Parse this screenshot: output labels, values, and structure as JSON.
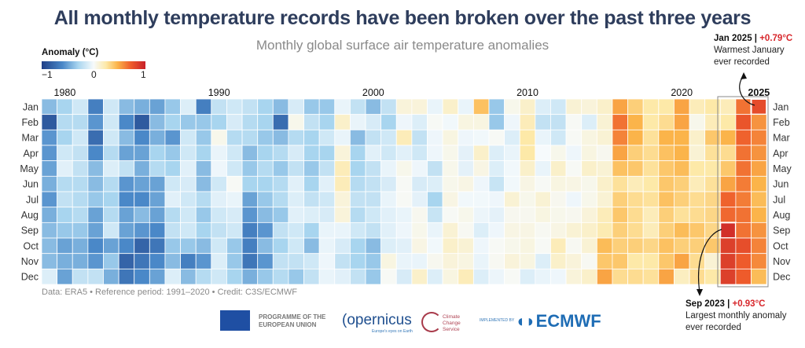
{
  "header": {
    "title": "All monthly temperature records have been broken over the past three years",
    "subtitle": "Monthly global surface air temperature anomalies"
  },
  "legend": {
    "title": "Anomaly (°C)",
    "ticks": [
      "−1",
      "0",
      "1"
    ],
    "colors": [
      "#1f3f87",
      "#4a88c8",
      "#a8d5ef",
      "#f6fafc",
      "#fde9a8",
      "#fbb44a",
      "#ee5b2b",
      "#c8202a"
    ]
  },
  "annotations": {
    "jan2025": {
      "label": "Jan 2025",
      "sep": " | ",
      "value": "+0.79°C",
      "line1": "Warmest January",
      "line2": "ever recorded"
    },
    "sep2023": {
      "label": "Sep 2023",
      "sep": " | ",
      "value": "+0.93°C",
      "line1": "Largest monthly anomaly",
      "line2": "ever recorded"
    }
  },
  "footer": {
    "note": "Data: ERA5 • Reference period: 1991–2020 • Credit: C3S/ECMWF",
    "logos": {
      "eu": "PROGRAMME OF THE EUROPEAN UNION",
      "copernicus": "opernicus",
      "copernicus_sub": "Europe's eyes on Earth",
      "c3s": "Climate Change Service",
      "implemented": "IMPLEMENTED BY",
      "ecmwf": "ECMWF"
    }
  },
  "chart_data": {
    "type": "heatmap",
    "title": "All monthly temperature records have been broken over the past three years",
    "subtitle": "Monthly global surface air temperature anomalies",
    "colorbar_label": "Anomaly (°C)",
    "color_range": [
      -1,
      1
    ],
    "year_start": 1979,
    "year_end": 2025,
    "x_tick_labels": [
      "1980",
      "1990",
      "2000",
      "2010",
      "2020",
      "2025"
    ],
    "months": [
      "Jan",
      "Feb",
      "Mar",
      "Apr",
      "May",
      "Jun",
      "Jul",
      "Aug",
      "Sep",
      "Oct",
      "Nov",
      "Dec"
    ],
    "highlighted": [
      {
        "year": 2025,
        "month": "Jan",
        "value": 0.79
      },
      {
        "year": 2023,
        "month": "Sep",
        "value": 0.93
      }
    ],
    "highlight_box_years": [
      2023,
      2025
    ],
    "values_by_month": {
      "Jan": [
        -0.4,
        -0.3,
        -0.15,
        -0.65,
        -0.15,
        -0.4,
        -0.45,
        -0.5,
        -0.35,
        -0.1,
        -0.65,
        -0.2,
        -0.15,
        -0.2,
        -0.3,
        -0.4,
        -0.12,
        -0.35,
        -0.35,
        -0.05,
        -0.2,
        -0.4,
        -0.2,
        0.1,
        0.1,
        -0.05,
        0.15,
        -0.05,
        0.4,
        -0.35,
        0.05,
        0.15,
        -0.1,
        -0.15,
        0.12,
        0.1,
        0.15,
        0.5,
        0.35,
        0.25,
        0.25,
        0.5,
        0.2,
        0.25,
        0.2,
        0.65,
        0.79
      ],
      "Feb": [
        -0.85,
        -0.25,
        -0.25,
        -0.55,
        -0.15,
        -0.6,
        -0.85,
        -0.4,
        -0.3,
        -0.35,
        -0.35,
        -0.3,
        -0.12,
        -0.25,
        -0.3,
        -0.75,
        0.05,
        -0.2,
        -0.3,
        0.15,
        -0.05,
        -0.12,
        -0.3,
        -0.03,
        -0.1,
        0.02,
        -0.02,
        0.08,
        0.08,
        -0.35,
        -0.03,
        0.2,
        -0.2,
        -0.2,
        0.02,
        -0.1,
        0.12,
        0.65,
        0.45,
        0.25,
        0.3,
        0.5,
        0.05,
        0.2,
        0.25,
        0.75,
        0.55
      ],
      "Mar": [
        -0.55,
        -0.3,
        -0.15,
        -0.75,
        -0.15,
        -0.4,
        -0.6,
        -0.45,
        -0.55,
        -0.15,
        -0.35,
        0.05,
        -0.25,
        -0.25,
        -0.35,
        -0.4,
        -0.25,
        -0.3,
        -0.15,
        -0.05,
        -0.4,
        -0.2,
        -0.15,
        0.2,
        -0.2,
        -0.03,
        0.08,
        -0.03,
        -0.02,
        0.02,
        -0.1,
        0.25,
        -0.05,
        -0.15,
        0.02,
        0.08,
        0.12,
        0.6,
        0.45,
        0.28,
        0.45,
        0.45,
        0.15,
        0.38,
        0.45,
        0.7,
        0.6
      ],
      "Apr": [
        -0.55,
        -0.15,
        -0.2,
        -0.6,
        -0.25,
        -0.5,
        -0.5,
        -0.3,
        -0.35,
        -0.15,
        -0.3,
        -0.05,
        -0.15,
        -0.4,
        -0.3,
        -0.25,
        -0.12,
        -0.3,
        -0.3,
        0.1,
        -0.3,
        -0.08,
        -0.15,
        -0.08,
        -0.15,
        -0.03,
        0.05,
        -0.07,
        0.15,
        -0.1,
        -0.05,
        0.25,
        0.0,
        0.05,
        -0.03,
        0.08,
        0.04,
        0.5,
        0.35,
        0.3,
        0.4,
        0.45,
        0.12,
        0.28,
        0.3,
        0.65,
        0.55
      ],
      "May": [
        -0.5,
        -0.08,
        -0.2,
        -0.4,
        -0.1,
        -0.2,
        -0.45,
        -0.25,
        -0.3,
        -0.08,
        -0.4,
        -0.03,
        -0.15,
        -0.35,
        -0.25,
        -0.35,
        -0.2,
        -0.35,
        -0.2,
        0.2,
        -0.3,
        -0.2,
        -0.05,
        0.05,
        -0.03,
        -0.2,
        0.05,
        -0.07,
        0.07,
        -0.1,
        -0.02,
        0.15,
        -0.05,
        0.15,
        0.02,
        0.15,
        0.12,
        0.4,
        0.38,
        0.28,
        0.38,
        0.42,
        0.25,
        0.25,
        0.38,
        0.65,
        0.5
      ],
      "Jun": [
        -0.45,
        -0.25,
        -0.25,
        -0.4,
        -0.25,
        -0.55,
        -0.5,
        -0.5,
        -0.15,
        -0.12,
        -0.4,
        -0.15,
        0.02,
        -0.3,
        -0.3,
        -0.25,
        -0.08,
        -0.3,
        -0.08,
        0.2,
        -0.25,
        -0.2,
        -0.12,
        0.02,
        -0.12,
        -0.1,
        0.05,
        0.07,
        -0.03,
        -0.18,
        -0.02,
        0.07,
        0.02,
        0.08,
        0.07,
        0.05,
        0.15,
        0.28,
        0.2,
        0.25,
        0.38,
        0.35,
        0.2,
        0.28,
        0.5,
        0.62,
        0.45
      ],
      "Jul": [
        -0.55,
        -0.2,
        -0.25,
        -0.35,
        -0.3,
        -0.6,
        -0.6,
        -0.5,
        -0.08,
        -0.15,
        -0.25,
        -0.08,
        -0.05,
        -0.5,
        -0.35,
        -0.25,
        -0.1,
        -0.2,
        -0.15,
        0.1,
        -0.2,
        -0.2,
        -0.05,
        0.02,
        -0.07,
        -0.3,
        0.07,
        -0.02,
        -0.02,
        -0.03,
        0.12,
        0.05,
        0.12,
        0.04,
        -0.03,
        0.05,
        0.12,
        0.35,
        0.3,
        0.28,
        0.4,
        0.35,
        0.3,
        0.32,
        0.7,
        0.62,
        0.42
      ],
      "Aug": [
        -0.45,
        -0.3,
        -0.25,
        -0.5,
        -0.25,
        -0.5,
        -0.4,
        -0.5,
        -0.25,
        -0.15,
        -0.35,
        -0.15,
        -0.12,
        -0.55,
        -0.4,
        -0.35,
        -0.08,
        -0.1,
        -0.12,
        0.1,
        -0.25,
        -0.15,
        -0.08,
        -0.05,
        0.04,
        -0.18,
        0.02,
        0.05,
        -0.04,
        -0.07,
        0.04,
        0.04,
        0.08,
        0.05,
        0.04,
        0.1,
        0.2,
        0.38,
        0.3,
        0.2,
        0.35,
        0.28,
        0.3,
        0.32,
        0.68,
        0.65,
        0.45
      ],
      "Sep": [
        -0.4,
        -0.35,
        -0.35,
        -0.5,
        -0.15,
        -0.5,
        -0.55,
        -0.6,
        -0.2,
        -0.15,
        -0.3,
        -0.2,
        -0.15,
        -0.65,
        -0.55,
        -0.2,
        -0.15,
        -0.3,
        -0.05,
        -0.05,
        -0.15,
        -0.2,
        -0.08,
        -0.03,
        0.05,
        -0.05,
        0.12,
        0.03,
        -0.1,
        -0.03,
        0.07,
        0.07,
        0.03,
        0.07,
        0.12,
        0.15,
        0.22,
        0.35,
        0.3,
        0.2,
        0.35,
        0.42,
        0.38,
        0.32,
        0.93,
        0.65,
        0.55
      ],
      "Oct": [
        -0.4,
        -0.5,
        -0.45,
        -0.6,
        -0.5,
        -0.6,
        -0.8,
        -0.7,
        -0.35,
        -0.35,
        -0.4,
        -0.15,
        -0.35,
        -0.65,
        -0.4,
        -0.3,
        -0.15,
        -0.4,
        -0.05,
        -0.12,
        -0.3,
        -0.4,
        -0.1,
        -0.08,
        0.07,
        -0.02,
        0.15,
        0.12,
        -0.03,
        0.02,
        0.05,
        0.08,
        0.02,
        0.2,
        0.03,
        0.12,
        0.42,
        0.35,
        0.35,
        0.32,
        0.4,
        0.35,
        0.35,
        0.38,
        0.85,
        0.78,
        0.6
      ],
      "Nov": [
        -0.4,
        -0.45,
        -0.45,
        -0.55,
        -0.35,
        -0.8,
        -0.7,
        -0.6,
        -0.4,
        -0.65,
        -0.55,
        -0.1,
        -0.35,
        -0.7,
        -0.55,
        -0.2,
        -0.2,
        -0.15,
        -0.03,
        -0.2,
        -0.3,
        -0.35,
        0.08,
        -0.05,
        -0.05,
        0.04,
        0.1,
        0.08,
        -0.05,
        0.03,
        0.1,
        0.08,
        -0.1,
        0.15,
        0.1,
        0.03,
        0.38,
        0.38,
        0.25,
        0.25,
        0.38,
        0.5,
        0.3,
        0.12,
        0.85,
        0.72,
        0.58
      ],
      "Dec": [
        -0.1,
        -0.5,
        -0.2,
        -0.2,
        -0.45,
        -0.7,
        -0.6,
        -0.5,
        -0.1,
        -0.4,
        -0.25,
        -0.15,
        -0.3,
        -0.45,
        -0.35,
        -0.25,
        -0.35,
        -0.2,
        -0.05,
        -0.08,
        -0.2,
        -0.35,
        0.02,
        -0.12,
        0.15,
        -0.1,
        0.08,
        0.2,
        -0.1,
        -0.04,
        0.02,
        -0.1,
        -0.05,
        -0.03,
        0.1,
        0.15,
        0.5,
        0.3,
        0.3,
        0.28,
        0.5,
        0.18,
        0.3,
        0.25,
        0.85,
        0.72,
        0.42
      ]
    }
  }
}
